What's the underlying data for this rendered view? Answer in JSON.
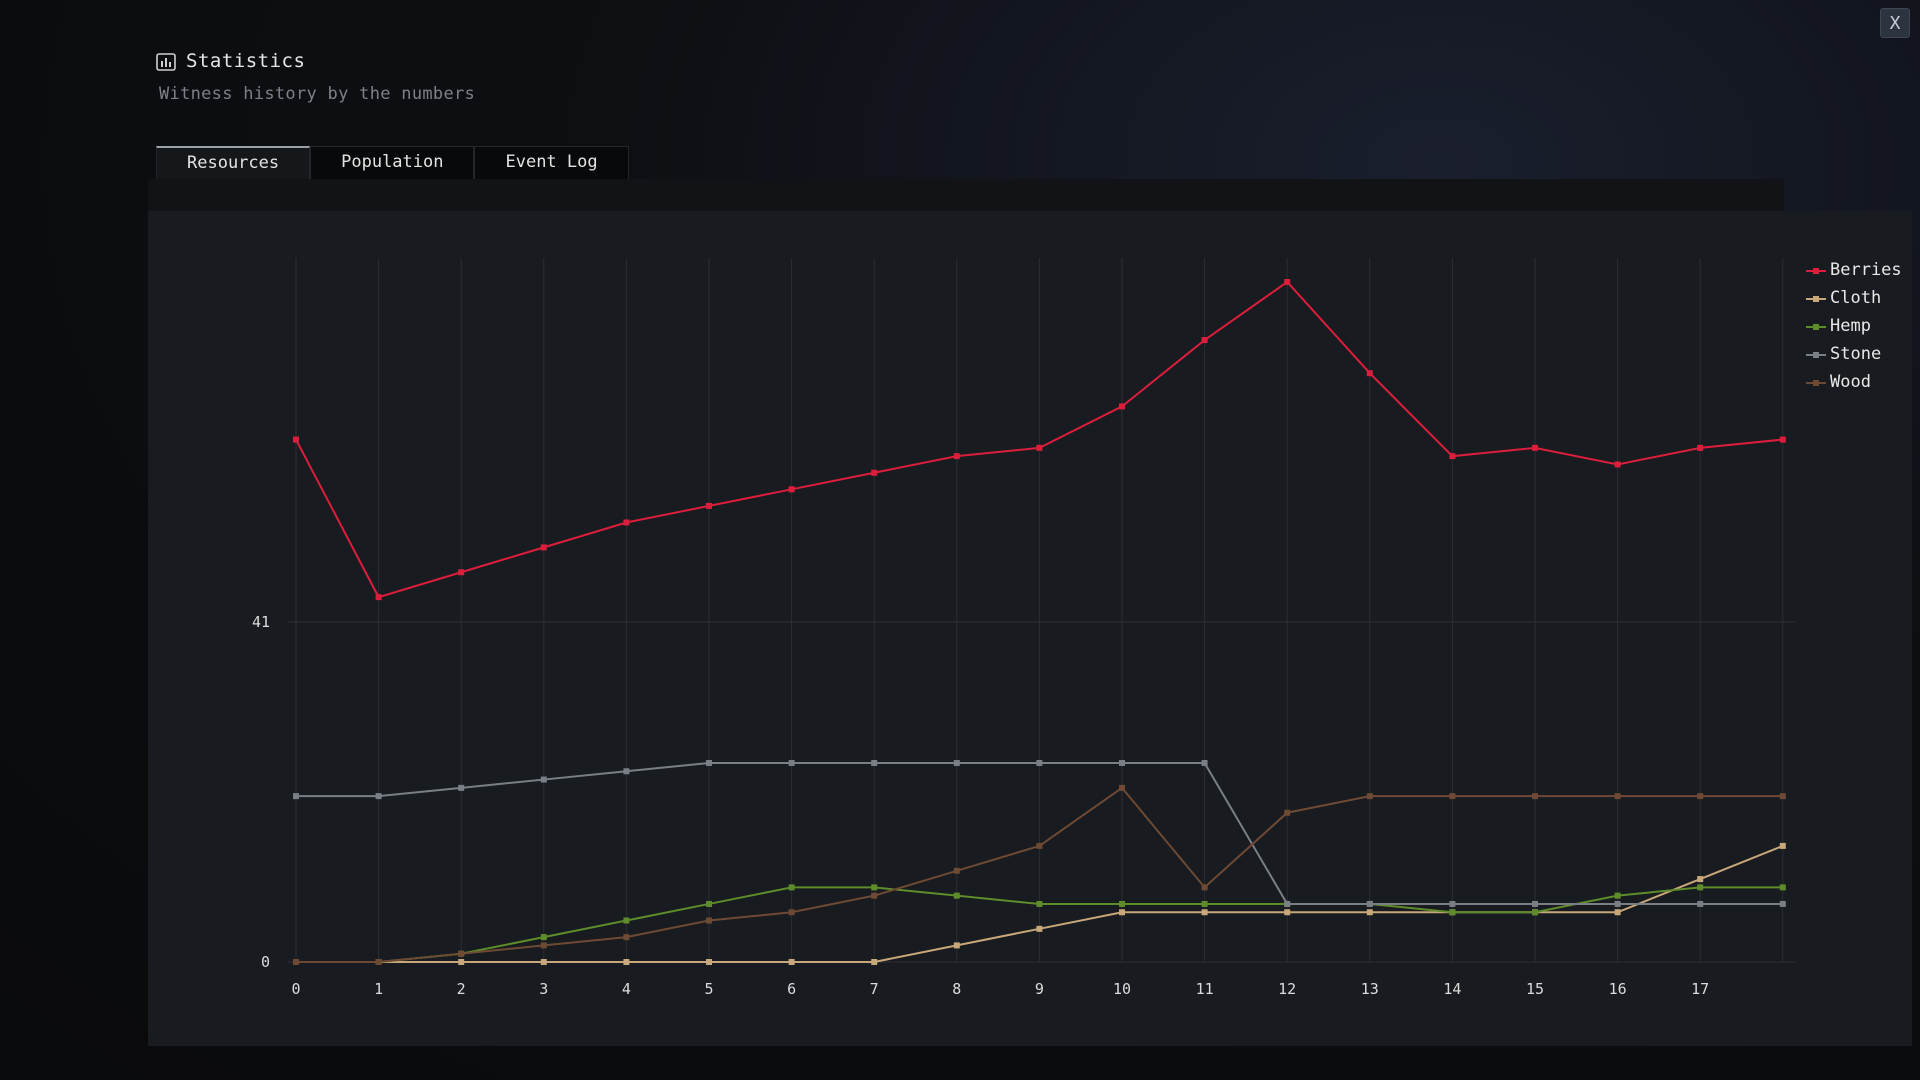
{
  "window": {
    "title": "Statistics",
    "subtitle": "Witness history by the numbers",
    "close_label": "X"
  },
  "tabs": [
    {
      "label": "Resources",
      "active": true
    },
    {
      "label": "Population",
      "active": false
    },
    {
      "label": "Event Log",
      "active": false
    }
  ],
  "chart_data": {
    "type": "line",
    "x": [
      0,
      1,
      2,
      3,
      4,
      5,
      6,
      7,
      8,
      9,
      10,
      11,
      12,
      13,
      14,
      15,
      16,
      17,
      18
    ],
    "x_tick_labels": [
      "0",
      "1",
      "2",
      "3",
      "4",
      "5",
      "6",
      "7",
      "8",
      "9",
      "10",
      "11",
      "12",
      "13",
      "14",
      "15",
      "16",
      "17"
    ],
    "y_tick_values": [
      0,
      41
    ],
    "y_tick_labels": [
      "0",
      "41"
    ],
    "ylim": [
      0,
      82
    ],
    "grid": true,
    "legend_position": "top-right",
    "series": [
      {
        "name": "Berries",
        "color": "#dc1e3c",
        "values": [
          63,
          44,
          47,
          50,
          53,
          55,
          57,
          59,
          61,
          62,
          67,
          75,
          82,
          71,
          61,
          62,
          60,
          62,
          63
        ]
      },
      {
        "name": "Cloth",
        "color": "#c8a87a",
        "values": [
          0,
          0,
          0,
          0,
          0,
          0,
          0,
          0,
          2,
          4,
          6,
          6,
          6,
          6,
          6,
          6,
          6,
          10,
          14
        ]
      },
      {
        "name": "Hemp",
        "color": "#5e8c2a",
        "values": [
          0,
          0,
          1,
          3,
          5,
          7,
          9,
          9,
          8,
          7,
          7,
          7,
          7,
          7,
          6,
          6,
          8,
          9,
          9
        ]
      },
      {
        "name": "Stone",
        "color": "#7a7f86",
        "values": [
          20,
          20,
          21,
          22,
          23,
          24,
          24,
          24,
          24,
          24,
          24,
          24,
          7,
          7,
          7,
          7,
          7,
          7,
          7
        ]
      },
      {
        "name": "Wood",
        "color": "#6e4a34",
        "values": [
          0,
          0,
          1,
          2,
          3,
          5,
          6,
          8,
          11,
          14,
          21,
          9,
          18,
          20,
          20,
          20,
          20,
          20,
          20
        ]
      }
    ]
  }
}
